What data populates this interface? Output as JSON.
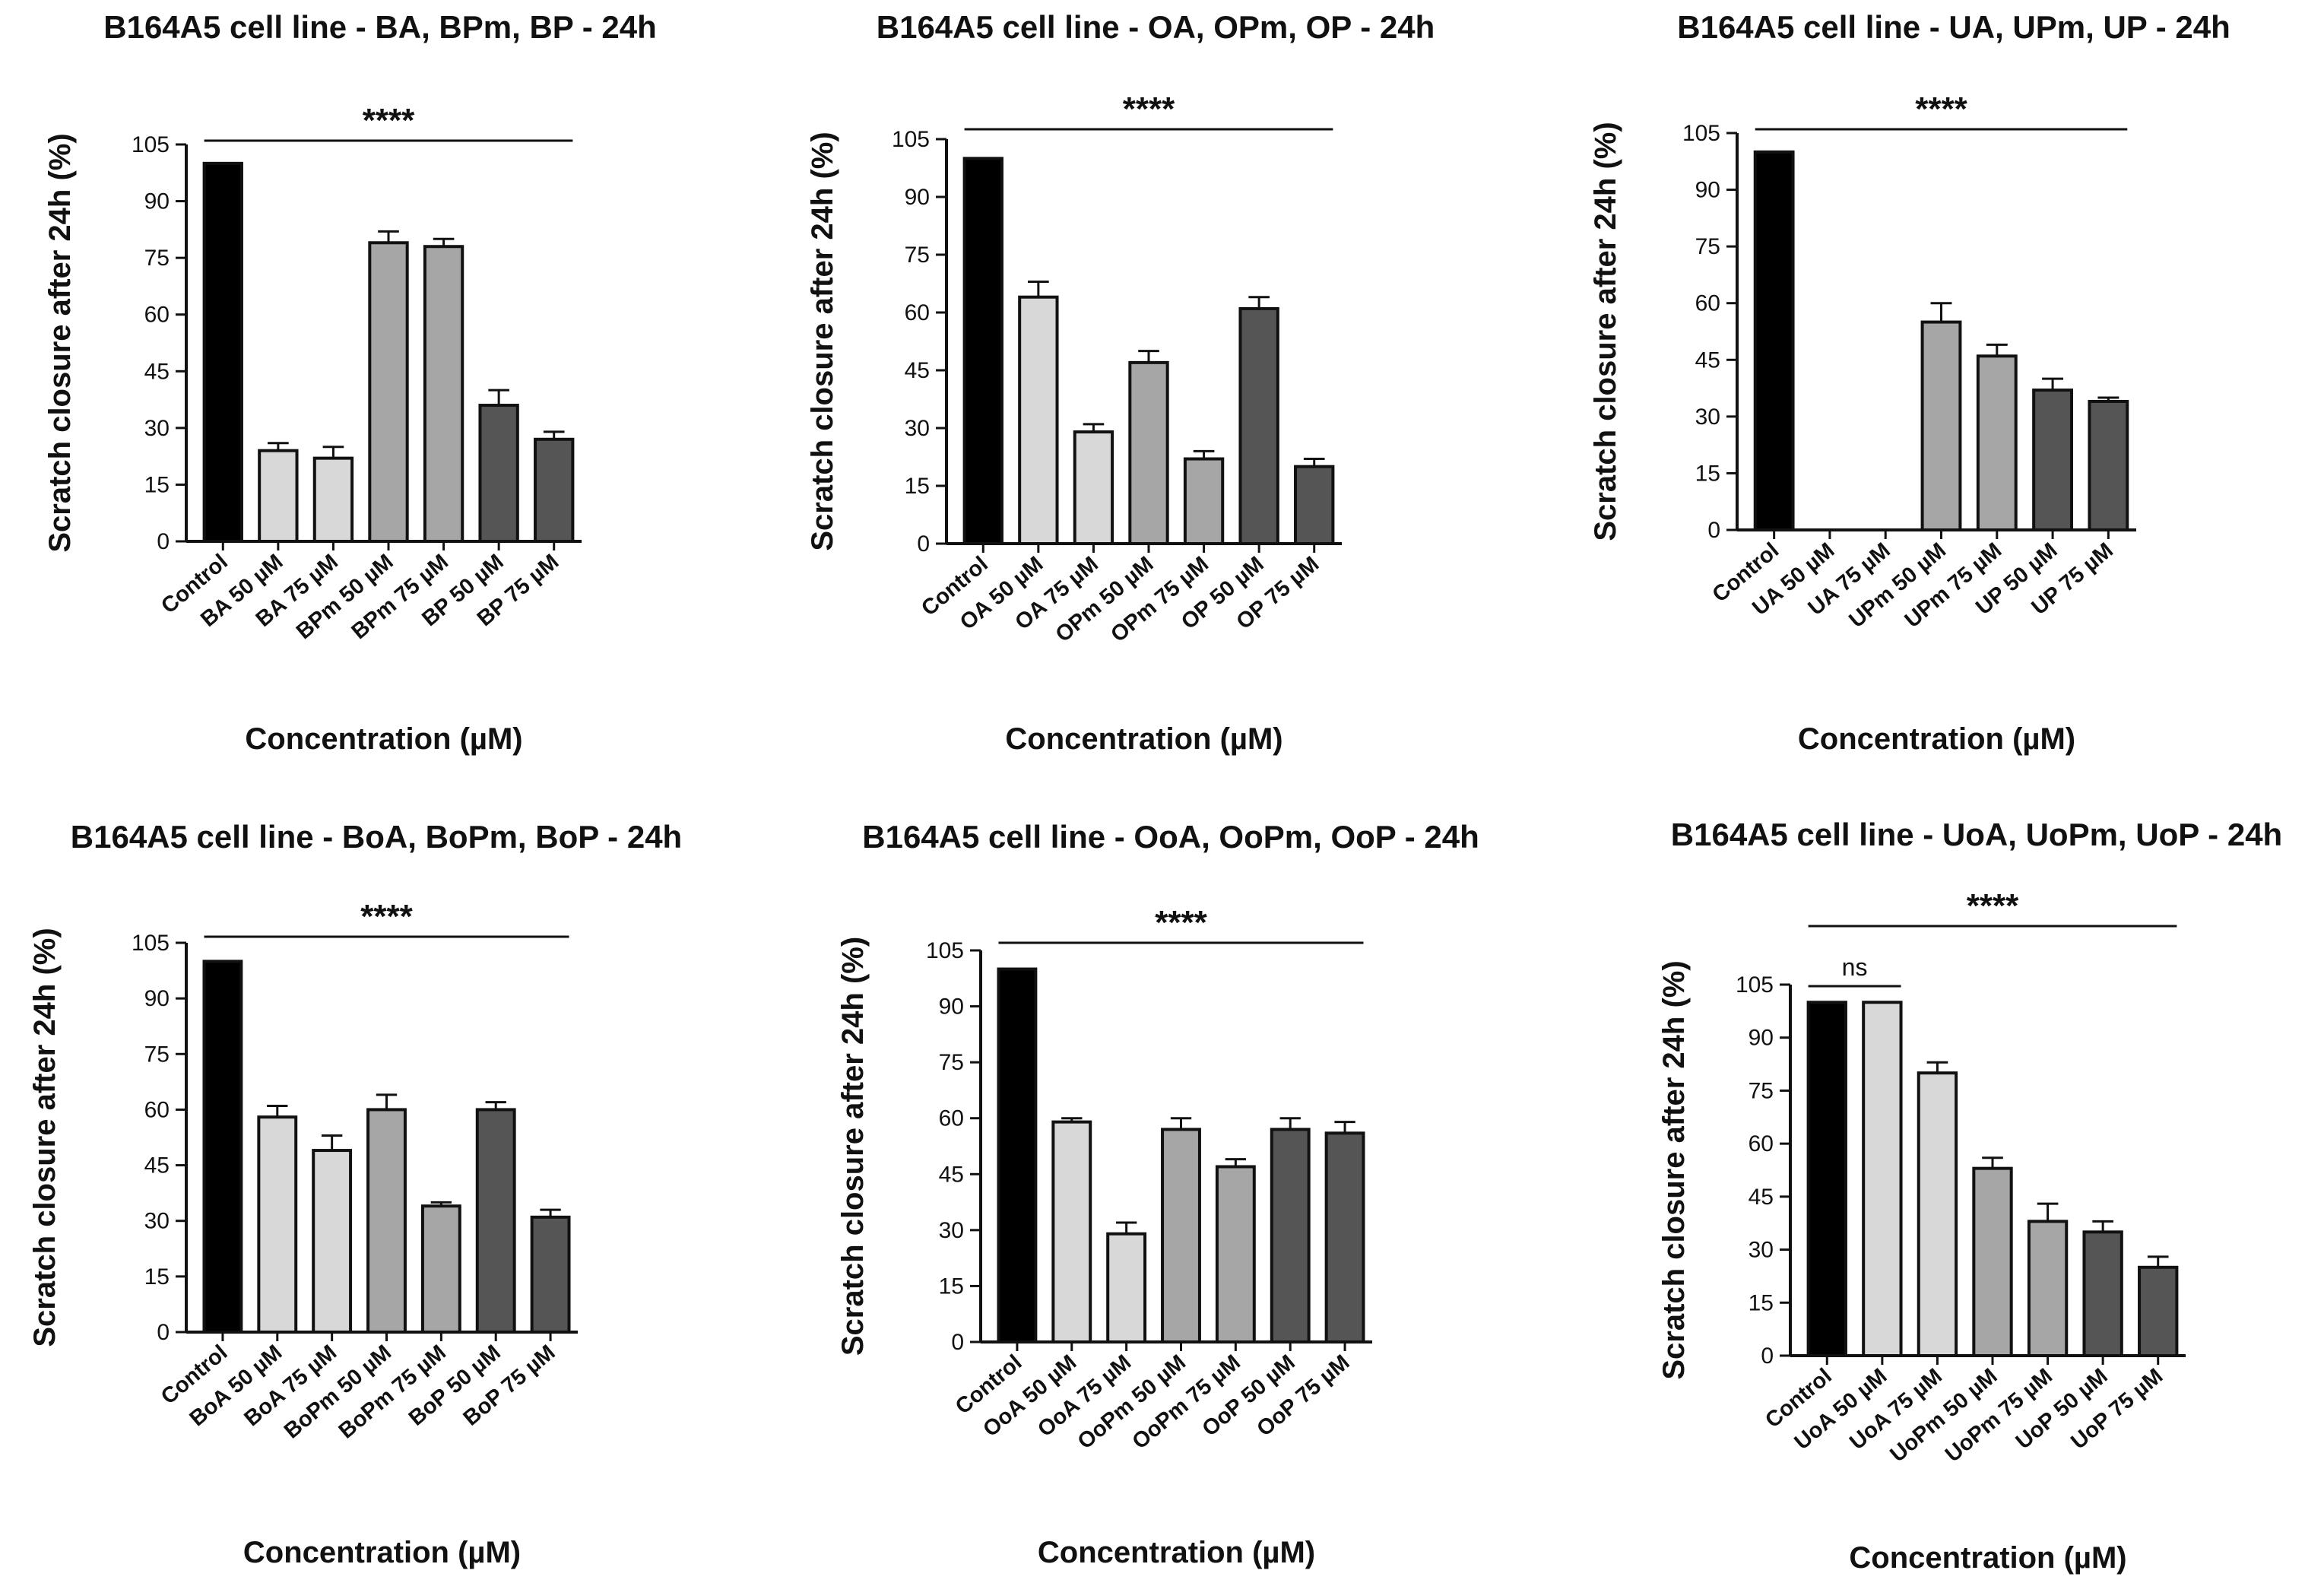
{
  "colors": {
    "control": "#000000",
    "light": "#d8d8d8",
    "medium": "#a6a6a6",
    "dark": "#555555",
    "axis": "#111111"
  },
  "chart_data": [
    {
      "type": "bar",
      "title": "B164A5 cell line - BA, BPm, BP - 24h",
      "xlabel": "Concentration (µM)",
      "ylabel": "Scratch closure after 24h (%)",
      "ylim": [
        0,
        105
      ],
      "yticks": [
        "0",
        "15",
        "30",
        "45",
        "60",
        "75",
        "90",
        "105"
      ],
      "categories": [
        "Control",
        "BA 50 µM",
        "BA 75 µM",
        "BPm 50 µM",
        "BPm 75 µM",
        "BP 50 µM",
        "BP 75 µM"
      ],
      "values": [
        100,
        24,
        22,
        79,
        78,
        36,
        27
      ],
      "errors": [
        0,
        2,
        3,
        3,
        2,
        4,
        2
      ],
      "shades": [
        "control",
        "light",
        "light",
        "medium",
        "medium",
        "dark",
        "dark"
      ],
      "significance": [
        {
          "label": "****",
          "from": 0,
          "to": 6
        }
      ]
    },
    {
      "type": "bar",
      "title": "B164A5 cell line - OA, OPm, OP - 24h",
      "xlabel": "Concentration (µM)",
      "ylabel": "Scratch closure after 24h (%)",
      "ylim": [
        0,
        105
      ],
      "yticks": [
        "0",
        "15",
        "30",
        "45",
        "60",
        "75",
        "90",
        "105"
      ],
      "categories": [
        "Control",
        "OA 50 µM",
        "OA 75 µM",
        "OPm 50 µM",
        "OPm 75 µM",
        "OP 50 µM",
        "OP 75 µM"
      ],
      "values": [
        100,
        64,
        29,
        47,
        22,
        61,
        20
      ],
      "errors": [
        0,
        4,
        2,
        3,
        2,
        3,
        2
      ],
      "shades": [
        "control",
        "light",
        "light",
        "medium",
        "medium",
        "dark",
        "dark"
      ],
      "significance": [
        {
          "label": "****",
          "from": 0,
          "to": 6
        }
      ]
    },
    {
      "type": "bar",
      "title": "B164A5 cell line - UA, UPm, UP - 24h",
      "xlabel": "Concentration (µM)",
      "ylabel": "Scratch closure after 24h (%)",
      "ylim": [
        0,
        105
      ],
      "yticks": [
        "0",
        "15",
        "30",
        "45",
        "60",
        "75",
        "90",
        "105"
      ],
      "categories": [
        "Control",
        "UA 50 µM",
        "UA 75 µM",
        "UPm 50 µM",
        "UPm 75 µM",
        "UP 50 µM",
        "UP 75 µM"
      ],
      "values": [
        100,
        0,
        0,
        55,
        46,
        37,
        34
      ],
      "errors": [
        0,
        0,
        0,
        5,
        3,
        3,
        1
      ],
      "shades": [
        "control",
        "light",
        "light",
        "medium",
        "medium",
        "dark",
        "dark"
      ],
      "significance": [
        {
          "label": "****",
          "from": 0,
          "to": 6
        }
      ]
    },
    {
      "type": "bar",
      "title": "B164A5 cell line - BoA, BoPm, BoP - 24h",
      "xlabel": "Concentration (µM)",
      "ylabel": "Scratch closure after 24h (%)",
      "ylim": [
        0,
        105
      ],
      "yticks": [
        "0",
        "15",
        "30",
        "45",
        "60",
        "75",
        "90",
        "105"
      ],
      "categories": [
        "Control",
        "BoA 50 µM",
        "BoA 75 µM",
        "BoPm 50 µM",
        "BoPm 75 µM",
        "BoP 50 µM",
        "BoP 75 µM"
      ],
      "values": [
        100,
        58,
        49,
        60,
        34,
        60,
        31
      ],
      "errors": [
        0,
        3,
        4,
        4,
        1,
        2,
        2
      ],
      "shades": [
        "control",
        "light",
        "light",
        "medium",
        "medium",
        "dark",
        "dark"
      ],
      "significance": [
        {
          "label": "****",
          "from": 0,
          "to": 6
        }
      ]
    },
    {
      "type": "bar",
      "title": "B164A5 cell line - OoA, OoPm, OoP - 24h",
      "xlabel": "Concentration (µM)",
      "ylabel": "Scratch closure after 24h (%)",
      "ylim": [
        0,
        105
      ],
      "yticks": [
        "0",
        "15",
        "30",
        "45",
        "60",
        "75",
        "90",
        "105"
      ],
      "categories": [
        "Control",
        "OoA 50 µM",
        "OoA 75 µM",
        "OoPm 50 µM",
        "OoPm 75 µM",
        "OoP 50 µM",
        "OoP 75 µM"
      ],
      "values": [
        100,
        59,
        29,
        57,
        47,
        57,
        56
      ],
      "errors": [
        0,
        1,
        3,
        3,
        2,
        3,
        3
      ],
      "shades": [
        "control",
        "light",
        "light",
        "medium",
        "medium",
        "dark",
        "dark"
      ],
      "significance": [
        {
          "label": "****",
          "from": 0,
          "to": 6
        }
      ]
    },
    {
      "type": "bar",
      "title": "B164A5 cell line - UoA, UoPm, UoP - 24h",
      "xlabel": "Concentration (µM)",
      "ylabel": "Scratch closure after 24h (%)",
      "ylim": [
        0,
        105
      ],
      "yticks": [
        "0",
        "15",
        "30",
        "45",
        "60",
        "75",
        "90",
        "105"
      ],
      "categories": [
        "Control",
        "UoA 50 µM",
        "UoA 75 µM",
        "UoPm 50 µM",
        "UoPm 75 µM",
        "UoP 50 µM",
        "UoP 75 µM"
      ],
      "values": [
        100,
        100,
        80,
        53,
        38,
        35,
        25
      ],
      "errors": [
        0,
        0,
        3,
        3,
        5,
        3,
        3
      ],
      "shades": [
        "control",
        "light",
        "light",
        "medium",
        "medium",
        "dark",
        "dark"
      ],
      "significance": [
        {
          "label": "****",
          "from": 0,
          "to": 6
        },
        {
          "label": "ns",
          "from": 0,
          "to": 1
        }
      ]
    }
  ]
}
